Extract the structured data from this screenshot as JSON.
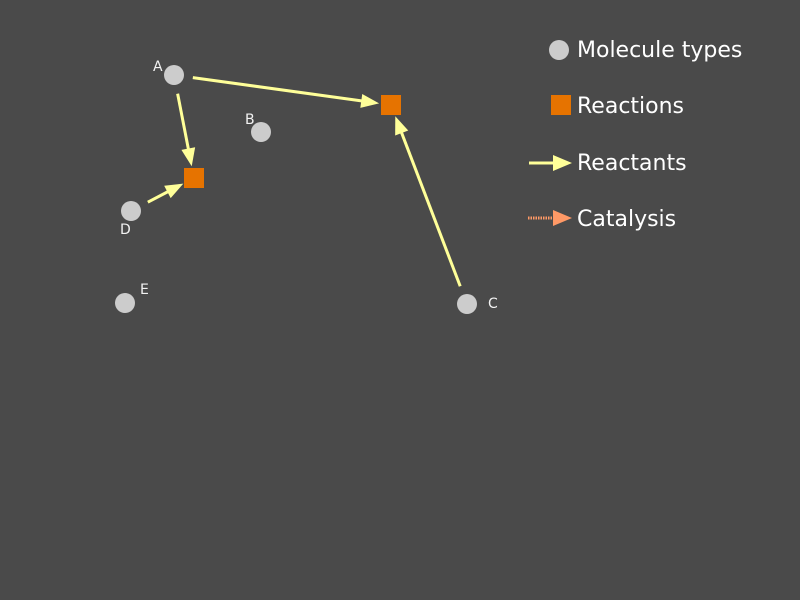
{
  "diagram": {
    "colors": {
      "background": "#4a4a4a",
      "molecule": "#cccccc",
      "reaction": "#e67300",
      "reactant_edge": "#ffff99",
      "catalysis_edge": "#ff9966"
    },
    "molecules": [
      {
        "id": "A",
        "label": "A"
      },
      {
        "id": "B",
        "label": "B"
      },
      {
        "id": "C",
        "label": "C"
      },
      {
        "id": "D",
        "label": "D"
      },
      {
        "id": "E",
        "label": "E"
      }
    ],
    "reactions": [
      {
        "id": "R1"
      },
      {
        "id": "R2"
      }
    ],
    "edges": [
      {
        "from": "A",
        "to": "R2",
        "type": "reactant"
      },
      {
        "from": "A",
        "to": "R1",
        "type": "reactant"
      },
      {
        "from": "D",
        "to": "R1",
        "type": "reactant"
      },
      {
        "from": "C",
        "to": "R2",
        "type": "reactant"
      }
    ]
  },
  "legend": {
    "molecule_types": "Molecule types",
    "reactions": "Reactions",
    "reactants": "Reactants",
    "catalysis": "Catalysis"
  }
}
